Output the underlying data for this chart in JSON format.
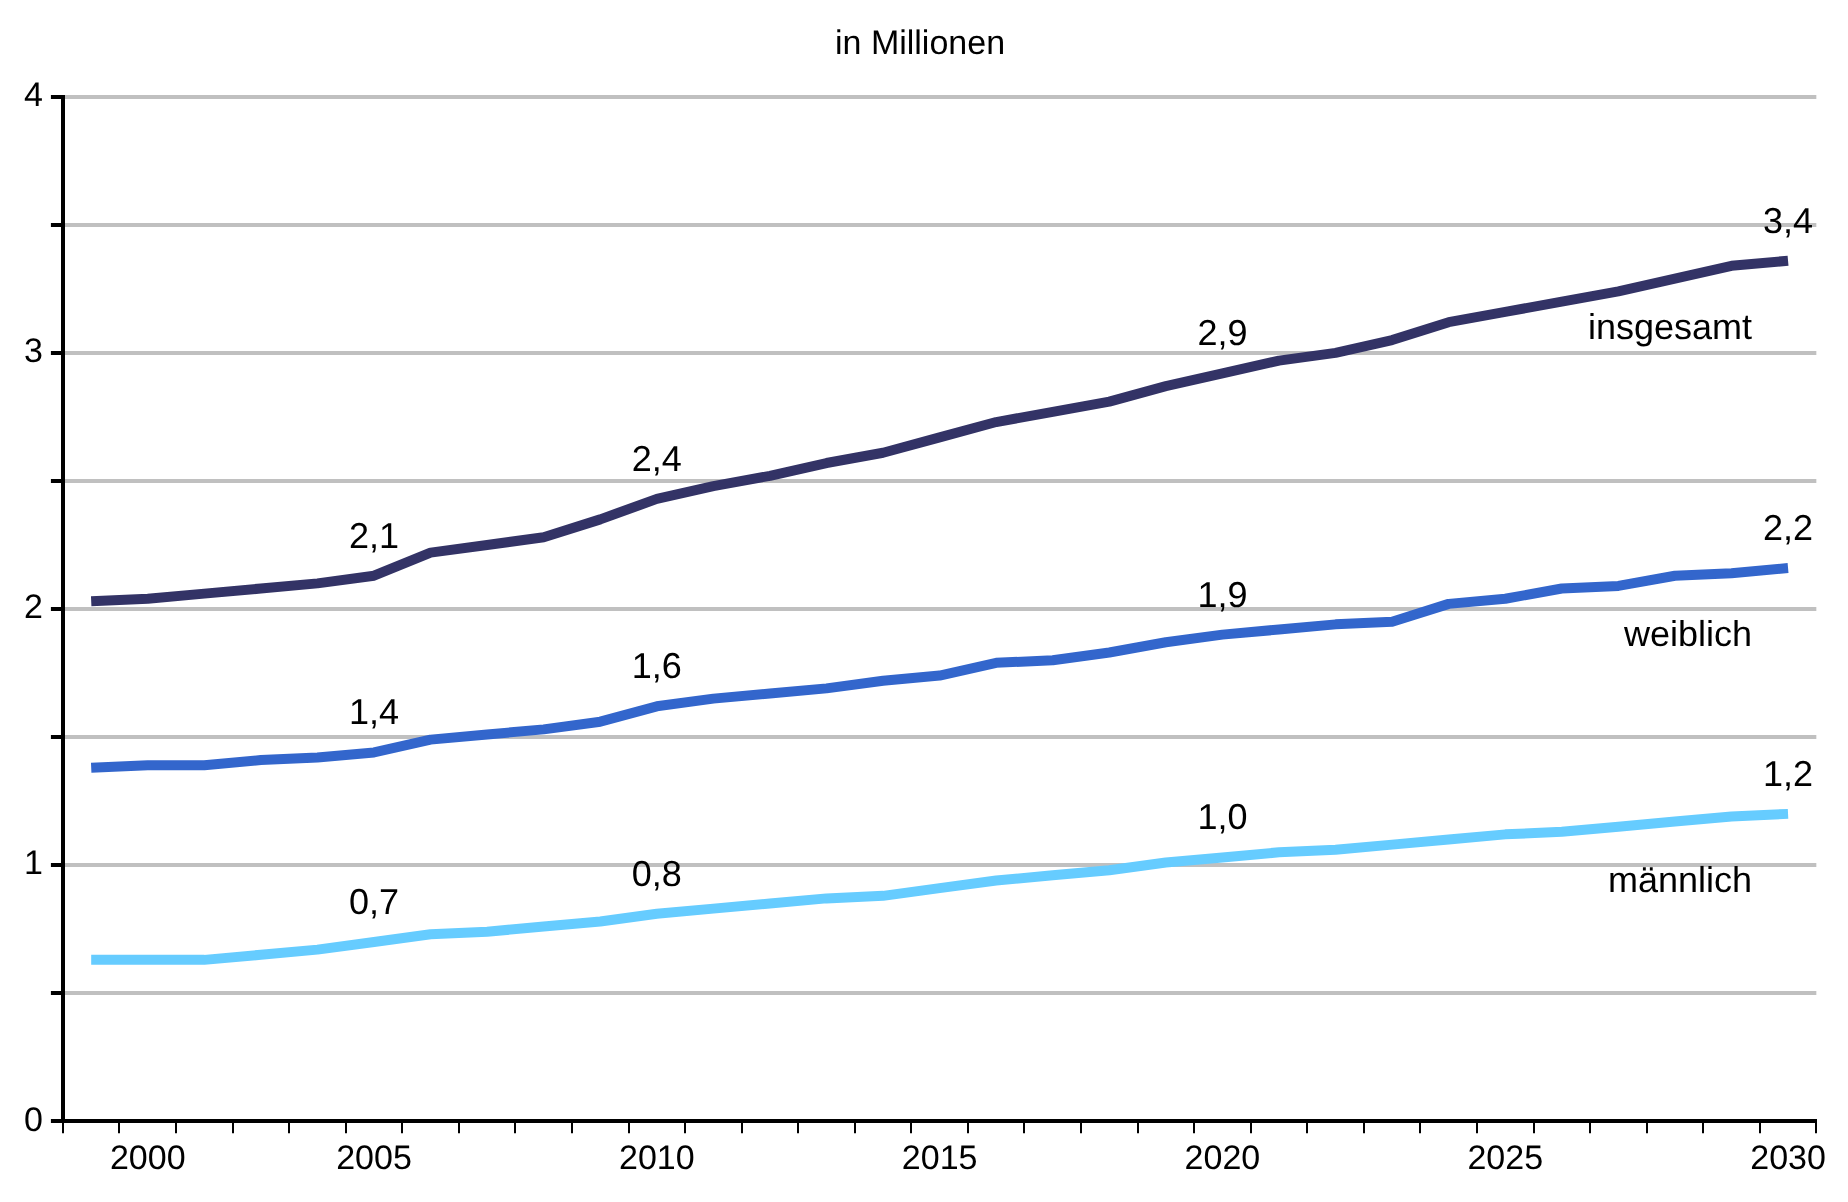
{
  "chart_data": {
    "type": "line",
    "title": "in Millionen",
    "categories": [
      null,
      "2000",
      null,
      null,
      null,
      "2005",
      null,
      null,
      null,
      null,
      "2010",
      null,
      null,
      null,
      null,
      "2015",
      null,
      null,
      null,
      null,
      "2020",
      null,
      null,
      null,
      null,
      "2025",
      null,
      null,
      null,
      null,
      "2030"
    ],
    "series": [
      {
        "name": "insgesamt",
        "color": "#333366",
        "values": [
          2.03,
          2.04,
          2.06,
          2.08,
          2.1,
          2.13,
          2.22,
          2.25,
          2.28,
          2.35,
          2.43,
          2.48,
          2.52,
          2.57,
          2.61,
          2.67,
          2.73,
          2.77,
          2.81,
          2.87,
          2.92,
          2.97,
          3.0,
          3.05,
          3.12,
          3.16,
          3.2,
          3.24,
          3.29,
          3.34,
          3.36
        ],
        "value_labels": [
          null,
          null,
          null,
          null,
          null,
          "2,1",
          null,
          null,
          null,
          null,
          "2,4",
          null,
          null,
          null,
          null,
          null,
          null,
          null,
          null,
          null,
          "2,9",
          null,
          null,
          null,
          null,
          null,
          null,
          null,
          null,
          null,
          "3,4"
        ]
      },
      {
        "name": "weiblich",
        "color": "#3366cc",
        "values": [
          1.38,
          1.39,
          1.39,
          1.41,
          1.42,
          1.44,
          1.49,
          1.51,
          1.53,
          1.56,
          1.62,
          1.65,
          1.67,
          1.69,
          1.72,
          1.74,
          1.79,
          1.8,
          1.83,
          1.87,
          1.9,
          1.92,
          1.94,
          1.95,
          2.02,
          2.04,
          2.08,
          2.09,
          2.13,
          2.14,
          2.16
        ],
        "value_labels": [
          null,
          null,
          null,
          null,
          null,
          "1,4",
          null,
          null,
          null,
          null,
          "1,6",
          null,
          null,
          null,
          null,
          null,
          null,
          null,
          null,
          null,
          "1,9",
          null,
          null,
          null,
          null,
          null,
          null,
          null,
          null,
          null,
          "2,2"
        ]
      },
      {
        "name": "männlich",
        "color": "#66ccff",
        "values": [
          0.63,
          0.63,
          0.63,
          0.65,
          0.67,
          0.7,
          0.73,
          0.74,
          0.76,
          0.78,
          0.81,
          0.83,
          0.85,
          0.87,
          0.88,
          0.91,
          0.94,
          0.96,
          0.98,
          1.01,
          1.03,
          1.05,
          1.06,
          1.08,
          1.1,
          1.12,
          1.13,
          1.15,
          1.17,
          1.19,
          1.2
        ],
        "value_labels": [
          null,
          null,
          null,
          null,
          null,
          "0,7",
          null,
          null,
          null,
          null,
          "0,8",
          null,
          null,
          null,
          null,
          null,
          null,
          null,
          null,
          null,
          "1,0",
          null,
          null,
          null,
          null,
          null,
          null,
          null,
          null,
          null,
          "1,2"
        ]
      }
    ],
    "ylim": [
      0,
      4
    ],
    "yticks": [
      0,
      {
        "value": 0.5,
        "label": null
      },
      1,
      {
        "value": 1.5,
        "label": null
      },
      2,
      {
        "value": 2.5,
        "label": null
      },
      3,
      {
        "value": 3.5,
        "label": null
      },
      4
    ],
    "grid": "y",
    "legend": false,
    "marker": "none",
    "line_style": "solid"
  }
}
